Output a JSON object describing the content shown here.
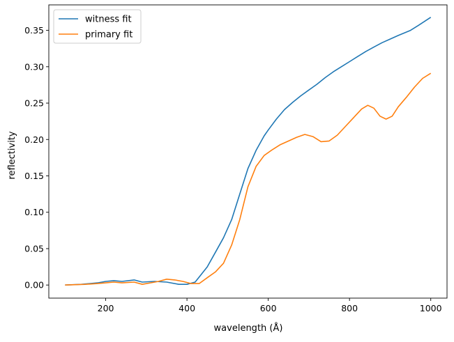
{
  "chart_data": {
    "type": "line",
    "xlabel": "wavelength (Å)",
    "ylabel": "reflectivity",
    "xlim": [
      60,
      1040
    ],
    "ylim": [
      -0.018,
      0.385
    ],
    "xticks": [
      200,
      400,
      600,
      800,
      1000
    ],
    "yticks": [
      0.0,
      0.05,
      0.1,
      0.15,
      0.2,
      0.25,
      0.3,
      0.35
    ],
    "ytick_labels": [
      "0.00",
      "0.05",
      "0.10",
      "0.15",
      "0.20",
      "0.25",
      "0.30",
      "0.35"
    ],
    "grid": false,
    "legend_position": "top-left",
    "series": [
      {
        "name": "witness fit",
        "color": "#1f77b4",
        "x": [
          100,
          140,
          180,
          200,
          220,
          240,
          270,
          290,
          320,
          350,
          380,
          400,
          420,
          430,
          450,
          470,
          490,
          510,
          530,
          550,
          570,
          590,
          600,
          620,
          640,
          660,
          680,
          700,
          720,
          740,
          760,
          780,
          800,
          820,
          840,
          860,
          880,
          900,
          920,
          950,
          970,
          1000
        ],
        "y": [
          0.0,
          0.001,
          0.003,
          0.005,
          0.006,
          0.005,
          0.007,
          0.004,
          0.005,
          0.004,
          0.001,
          0.001,
          0.004,
          0.011,
          0.025,
          0.045,
          0.065,
          0.09,
          0.125,
          0.16,
          0.185,
          0.205,
          0.213,
          0.228,
          0.241,
          0.251,
          0.26,
          0.268,
          0.276,
          0.285,
          0.293,
          0.3,
          0.307,
          0.314,
          0.321,
          0.327,
          0.333,
          0.338,
          0.343,
          0.35,
          0.357,
          0.368
        ]
      },
      {
        "name": "primary fit",
        "color": "#ff7f0e",
        "x": [
          100,
          150,
          180,
          200,
          220,
          240,
          270,
          290,
          310,
          330,
          350,
          370,
          390,
          410,
          430,
          450,
          470,
          490,
          510,
          530,
          550,
          570,
          590,
          610,
          630,
          650,
          670,
          690,
          710,
          730,
          750,
          770,
          790,
          810,
          830,
          845,
          860,
          875,
          890,
          905,
          920,
          940,
          960,
          980,
          1000
        ],
        "y": [
          0.0,
          0.001,
          0.002,
          0.003,
          0.004,
          0.003,
          0.004,
          0.001,
          0.003,
          0.005,
          0.008,
          0.007,
          0.005,
          0.002,
          0.002,
          0.01,
          0.018,
          0.03,
          0.055,
          0.09,
          0.135,
          0.163,
          0.178,
          0.186,
          0.193,
          0.198,
          0.203,
          0.207,
          0.204,
          0.197,
          0.198,
          0.206,
          0.218,
          0.23,
          0.242,
          0.247,
          0.243,
          0.232,
          0.228,
          0.232,
          0.245,
          0.258,
          0.272,
          0.284,
          0.291
        ]
      }
    ]
  }
}
